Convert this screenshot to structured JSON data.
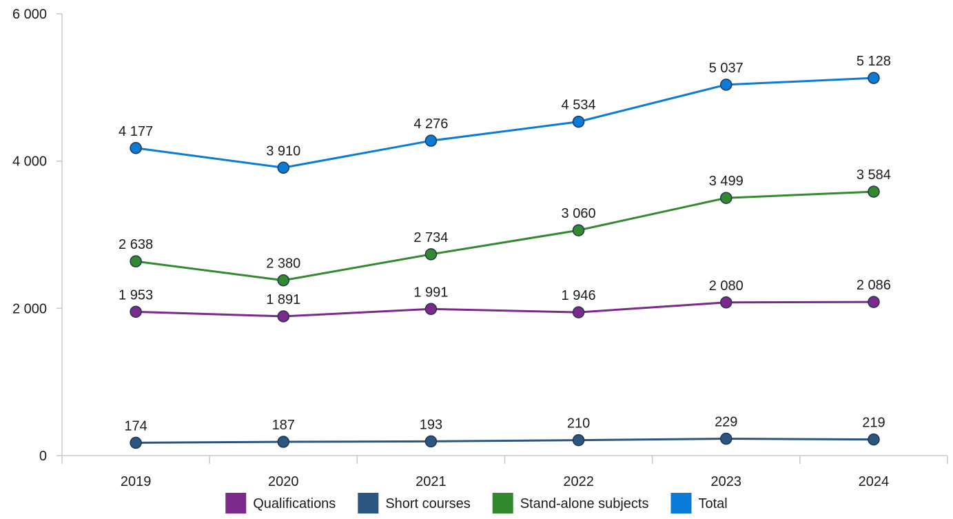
{
  "chart_data": {
    "type": "line",
    "title": "",
    "xlabel": "",
    "ylabel": "",
    "x": [
      "2019",
      "2020",
      "2021",
      "2022",
      "2023",
      "2024"
    ],
    "ylim": [
      0,
      6000
    ],
    "yticks": [
      0,
      2000,
      4000,
      6000
    ],
    "ytick_labels": [
      "0",
      "2 000",
      "4 000",
      "6 000"
    ],
    "grid": false,
    "legend_position": "bottom",
    "series": [
      {
        "name": "Qualifications",
        "color": "#7b2a8c",
        "values": [
          1953,
          1891,
          1991,
          1946,
          2080,
          2086
        ],
        "labels": [
          "1 953",
          "1 891",
          "1 991",
          "1 946",
          "2 080",
          "2 086"
        ]
      },
      {
        "name": "Short courses",
        "color": "#2b5680",
        "values": [
          174,
          187,
          193,
          210,
          229,
          219
        ],
        "labels": [
          "174",
          "187",
          "193",
          "210",
          "229",
          "219"
        ]
      },
      {
        "name": "Stand-alone subjects",
        "color": "#338a2e",
        "values": [
          2638,
          2380,
          2734,
          3060,
          3499,
          3584
        ],
        "labels": [
          "2 638",
          "2 380",
          "2 734",
          "3 060",
          "3 499",
          "3 584"
        ]
      },
      {
        "name": "Total",
        "color": "#0a7bd6",
        "values": [
          4177,
          3910,
          4276,
          4534,
          5037,
          5128
        ],
        "labels": [
          "4 177",
          "3 910",
          "4 276",
          "4 534",
          "5 037",
          "5 128"
        ]
      }
    ]
  }
}
